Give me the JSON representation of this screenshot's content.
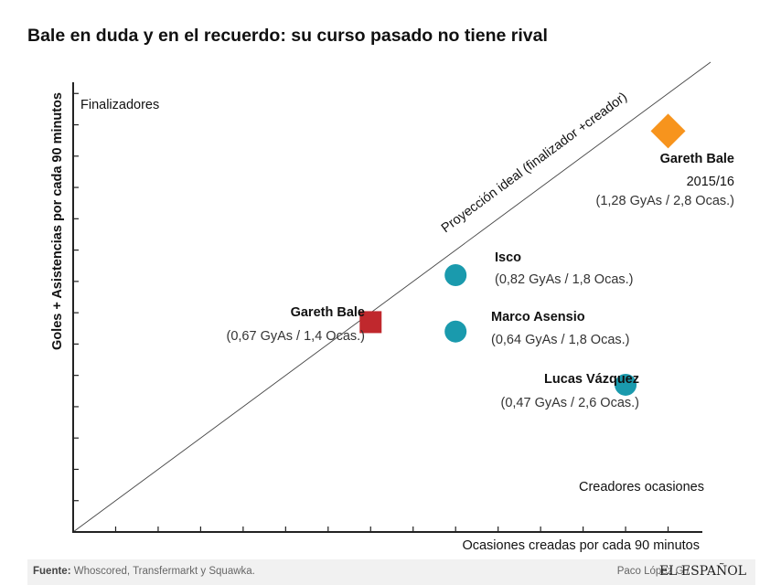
{
  "title": "Bale en duda y en el recuerdo: su curso pasado no tiene rival",
  "footer": {
    "source_label": "Fuente:",
    "source_text": "Whoscored, Transfermarkt y Squawka.",
    "author": "Paco López G",
    "separator": "/",
    "brand": "EL ESPAÑOL"
  },
  "colors": {
    "square": "#c0282d",
    "diamond": "#f7941d",
    "circle": "#1a9aad",
    "axis": "#222222",
    "footer_bg": "#f1f1f1"
  },
  "chart_data": {
    "type": "scatter",
    "title": "Bale en duda y en el recuerdo: su curso pasado no tiene rival",
    "xlabel": "Ocasiones creadas por cada 90 minutos",
    "ylabel": "Goles + Asistencias por cada 90 minutos",
    "xlim": [
      0,
      3.0
    ],
    "ylim": [
      0,
      1.5
    ],
    "x_tick_step": 0.2,
    "y_tick_step": 0.1,
    "grid": false,
    "reference_line": {
      "label": "Proyección ideal (finalizador +creador)",
      "from": [
        0,
        0
      ],
      "to": [
        3.0,
        1.5
      ]
    },
    "quadrant_labels": {
      "top_left": "Finalizadores",
      "bottom_right": "Creadores ocasiones"
    },
    "points": [
      {
        "name": "Gareth Bale",
        "season": "2015/16",
        "detail": "(1,28 GyAs / 2,8 Ocas.)",
        "x": 2.8,
        "y": 1.28,
        "marker": "diamond"
      },
      {
        "name": "Isco",
        "detail": "(0,82 GyAs / 1,8 Ocas.)",
        "x": 1.8,
        "y": 0.82,
        "marker": "circle"
      },
      {
        "name": "Gareth Bale",
        "detail": "(0,67 GyAs / 1,4 Ocas.)",
        "x": 1.4,
        "y": 0.67,
        "marker": "square"
      },
      {
        "name": "Marco Asensio",
        "detail": "(0,64 GyAs / 1,8 Ocas.)",
        "x": 1.8,
        "y": 0.64,
        "marker": "circle"
      },
      {
        "name": "Lucas Vázquez",
        "detail": "(0,47 GyAs / 2,6 Ocas.)",
        "x": 2.6,
        "y": 0.47,
        "marker": "circle"
      }
    ]
  }
}
